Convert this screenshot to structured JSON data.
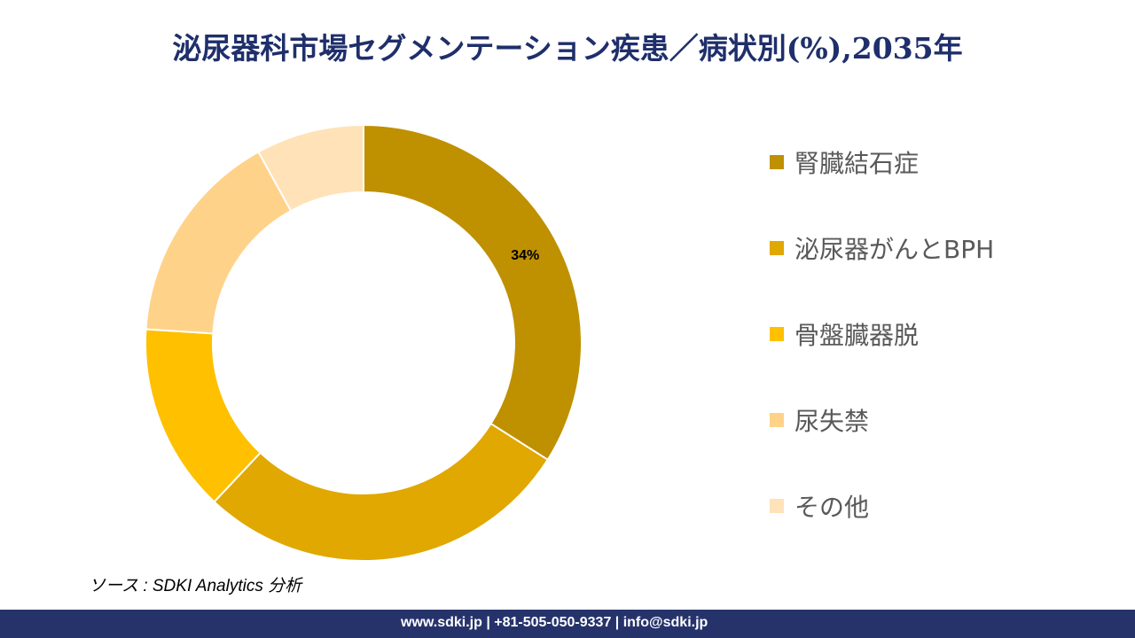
{
  "title": "泌尿器科市場セグメンテーション疾患／病状別(%),2035年",
  "chart_data": {
    "type": "pie",
    "donut": true,
    "categories": [
      "腎臓結石症",
      "泌尿器がんとBPH",
      "骨盤臓器脱",
      "尿失禁",
      "その他"
    ],
    "values": [
      34,
      28,
      14,
      16,
      8
    ],
    "data_labels": [
      "34%",
      "",
      "",
      "",
      ""
    ],
    "colors": [
      "#BF9000",
      "#E0A800",
      "#FFC000",
      "#FFD28A",
      "#FFE2B8"
    ],
    "legend_position": "right"
  },
  "source": "ソース : SDKI Analytics 分析",
  "footer": "www.sdki.jp | +81-505-050-9337 | info@sdki.jp"
}
